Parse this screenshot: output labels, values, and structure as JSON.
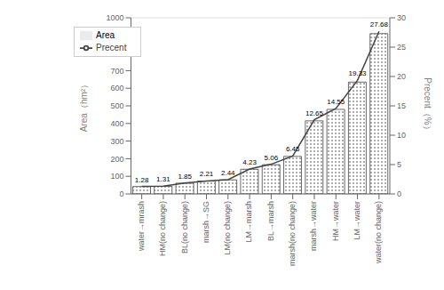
{
  "chart_data": {
    "type": "bar",
    "categories": [
      "water→mrash",
      "HM(no change)",
      "BL(no change)",
      "marsh→SG",
      "LM(no change)",
      "LM→marsh",
      "BL→marsh",
      "marsh(no change)",
      "marsh→water",
      "HM→water",
      "LM→water",
      "water(no change)"
    ],
    "series": [
      {
        "name": "Area",
        "type": "bar",
        "color": "#444444",
        "values": [
          42,
          43,
          61,
          73,
          80,
          140,
          166,
          213,
          415,
          480,
          635,
          910
        ]
      },
      {
        "name": "Precent",
        "type": "line",
        "color": "#444444",
        "axis": "y2",
        "data_labels": true,
        "values": [
          1.28,
          1.31,
          1.85,
          2.21,
          2.44,
          4.23,
          5.06,
          6.45,
          12.65,
          14.55,
          19.33,
          27.68
        ]
      }
    ],
    "ylim": [
      0,
      1000
    ],
    "yticks": [
      0,
      100,
      200,
      300,
      400,
      500,
      600,
      700,
      800,
      900,
      1000
    ],
    "y2lim": [
      0,
      30
    ],
    "y2ticks": [
      0,
      5,
      10,
      15,
      20,
      25,
      30
    ],
    "ylabel": "Area（hm²）",
    "y2label": "Precent（%）",
    "grid": true,
    "legend": "upper left"
  }
}
